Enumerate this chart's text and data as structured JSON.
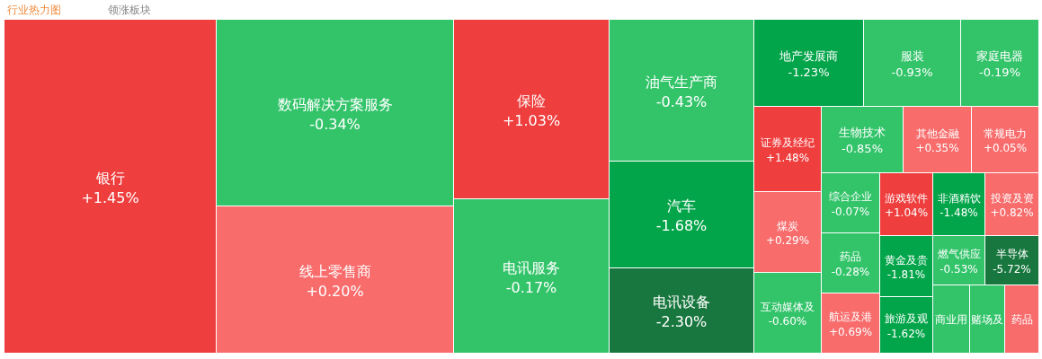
{
  "chart_data": {
    "type": "other",
    "title": "行业热力图",
    "annotations": [
      "领涨板块"
    ],
    "categories": [
      "银行",
      "数码解决方案服务",
      "线上零售商",
      "保险",
      "电讯服务",
      "油气生产商",
      "汽车",
      "电讯设备",
      "地产发展商",
      "服装",
      "家庭电器",
      "证券及经纪",
      "生物技术",
      "其他金融",
      "常规电力",
      "煤炭",
      "综合企业",
      "游戏软件",
      "非酒精饮",
      "投资及资",
      "互动媒体及",
      "药品",
      "黄金及贵",
      "燃气供应",
      "半导体",
      "航运及港",
      "旅游及观",
      "商业用",
      "赌场及",
      "药品"
    ],
    "values": [
      1.45,
      -0.34,
      0.2,
      1.03,
      -0.17,
      -0.43,
      -1.68,
      -2.3,
      -1.23,
      -0.93,
      -0.19,
      1.48,
      -0.85,
      0.35,
      0.05,
      0.29,
      -0.07,
      1.04,
      -1.48,
      0.82,
      -0.6,
      -0.28,
      -1.81,
      -0.53,
      -5.72,
      0.69,
      -1.62,
      null,
      null,
      null
    ],
    "value_labels": [
      "+1.45%",
      "-0.34%",
      "+0.20%",
      "+1.03%",
      "-0.17%",
      "-0.43%",
      "-1.68%",
      "-2.30%",
      "-1.23%",
      "-0.93%",
      "-0.19%",
      "+1.48%",
      "-0.85%",
      "+0.35%",
      "+0.05%",
      "+0.29%",
      "-0.07%",
      "+1.04%",
      "-1.48%",
      "+0.82%",
      "-0.60%",
      "-0.28%",
      "-1.81%",
      "-0.53%",
      "-5.72%",
      "+0.69%",
      "-1.62%",
      null,
      null,
      null
    ],
    "colors": [
      "#ef3e3e",
      "#33c46a",
      "#f86c6c",
      "#ef3e3e",
      "#33c46a",
      "#33c46a",
      "#03a54a",
      "#18773e",
      "#03a54a",
      "#33c46a",
      "#33c46a",
      "#ef3e3e",
      "#33c46a",
      "#f86c6c",
      "#f86c6c",
      "#f86c6c",
      "#33c46a",
      "#ef3e3e",
      "#03a54a",
      "#f86c6c",
      "#33c46a",
      "#33c46a",
      "#03a54a",
      "#33c46a",
      "#18773e",
      "#f86c6c",
      "#03a54a",
      "#33c46a",
      "#33c46a",
      "#f86c6c"
    ]
  }
}
